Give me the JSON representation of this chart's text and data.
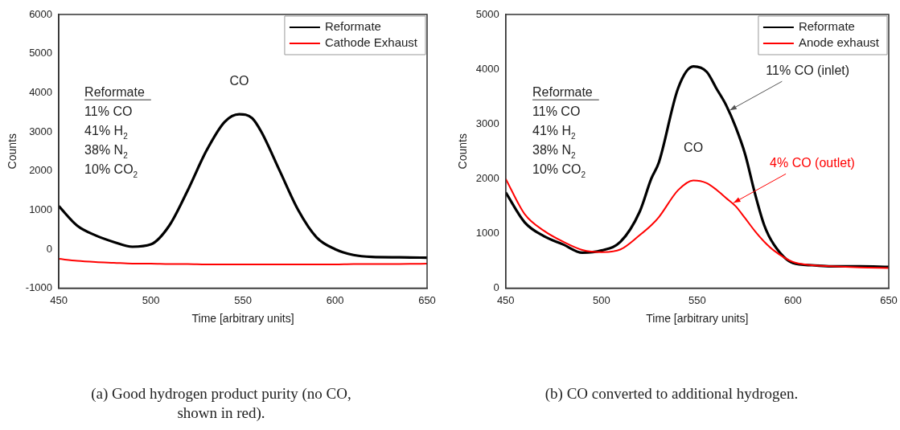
{
  "chart_data": [
    {
      "type": "line",
      "title": "(a)  Good hydrogen product purity (no CO, shown in red).",
      "xlabel": "Time [arbitrary units]",
      "ylabel": "Counts",
      "xlim": [
        450,
        650
      ],
      "xticks": [
        450,
        500,
        550,
        600,
        650
      ],
      "ylim": [
        -1000,
        6000
      ],
      "yticks": [
        -1000,
        0,
        1000,
        2000,
        3000,
        4000,
        5000,
        6000
      ],
      "legend": "top right",
      "grid": false,
      "x": [
        450,
        460,
        470,
        480,
        490,
        500,
        510,
        520,
        530,
        540,
        548,
        555,
        560,
        570,
        580,
        590,
        600,
        610,
        620,
        635,
        650
      ],
      "series": [
        {
          "name": "Reformate",
          "color": "#000000",
          "values": [
            1100,
            600,
            350,
            180,
            60,
            120,
            600,
            1500,
            2500,
            3250,
            3450,
            3350,
            3000,
            2000,
            1000,
            300,
            0,
            -150,
            -200,
            -210,
            -220
          ]
        },
        {
          "name": "Cathode Exhaust",
          "color": "#ff0000",
          "values": [
            -250,
            -300,
            -330,
            -350,
            -370,
            -370,
            -380,
            -380,
            -390,
            -390,
            -390,
            -390,
            -390,
            -390,
            -390,
            -390,
            -390,
            -380,
            -380,
            -380,
            -370
          ]
        }
      ],
      "annotations": [
        "Reformate",
        "11% CO",
        "41% H$_{2}$",
        "38% N$_{2}$",
        "10% CO$_{2}$",
        {
          "text": "CO",
          "x": 548,
          "y": 3450
        }
      ]
    },
    {
      "type": "line",
      "title": "(b) CO converted to additional hydrogen.",
      "xlabel": "Time [arbitrary units]",
      "ylabel": "Counts",
      "xlim": [
        450,
        650
      ],
      "xticks": [
        450,
        500,
        550,
        600,
        650
      ],
      "ylim": [
        0,
        5000
      ],
      "yticks": [
        0,
        1000,
        2000,
        3000,
        4000,
        5000
      ],
      "legend": "top right",
      "grid": false,
      "x": [
        450,
        460,
        470,
        480,
        490,
        500,
        510,
        520,
        526,
        530,
        540,
        548,
        555,
        560,
        565,
        570,
        575,
        580,
        585,
        590,
        600,
        610,
        620,
        635,
        650
      ],
      "series": [
        {
          "name": "Reformate",
          "color": "#000000",
          "values": [
            1750,
            1200,
            950,
            800,
            650,
            690,
            850,
            1400,
            2000,
            2300,
            3650,
            4050,
            3950,
            3650,
            3350,
            2950,
            2450,
            1750,
            1150,
            800,
            460,
            420,
            400,
            400,
            390
          ]
        },
        {
          "name": "Anode exhaust",
          "color": "#ff0000",
          "values": [
            2000,
            1350,
            1050,
            850,
            700,
            660,
            710,
            970,
            1150,
            1300,
            1790,
            1970,
            1920,
            1800,
            1650,
            1500,
            1280,
            1050,
            850,
            690,
            480,
            420,
            400,
            380,
            370
          ]
        }
      ],
      "annotations": [
        "Reformate",
        "11% CO",
        "41% H$_{2}$",
        "38% N$_{2}$",
        "10% CO$_{2}$",
        {
          "text": "CO",
          "x": 548,
          "y": 1970
        },
        {
          "text": "11% CO (inlet)",
          "x": 567,
          "y": 3250
        },
        {
          "text": "4% CO (outlet)",
          "x": 569,
          "y": 1560
        }
      ]
    }
  ]
}
